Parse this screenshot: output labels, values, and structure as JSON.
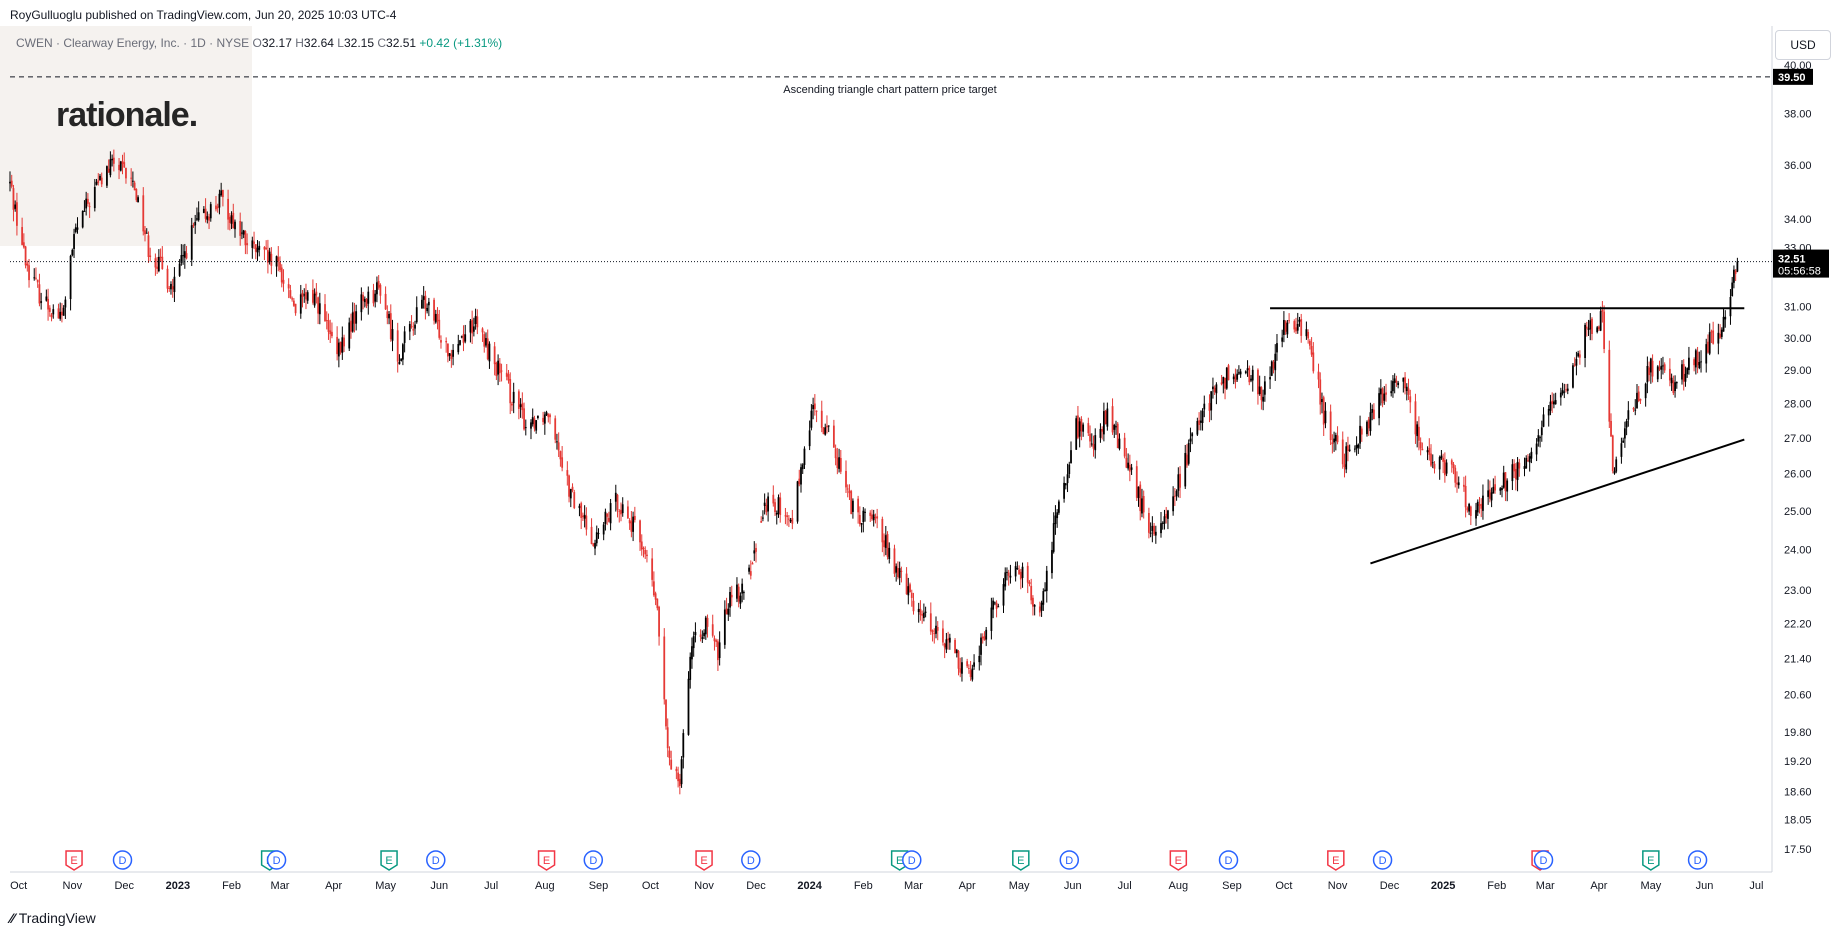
{
  "header": {
    "publisher_text": "RoyGulluoglu published on TradingView.com,",
    "publish_date": "Jun 20, 2025 10:03 UTC-4"
  },
  "symbol_bar": {
    "symbol_text": "CWEN · Clearway Energy, Inc. · 1D · NYSE",
    "open_label": "O",
    "open": "32.17",
    "high_label": "H",
    "high": "32.64",
    "low_label": "L",
    "low": "32.15",
    "close_label": "C",
    "close": "32.51",
    "change": "+0.42 (+1.31%)"
  },
  "watermark": {
    "logo_text": "rationale."
  },
  "currency": "USD",
  "footer": {
    "brand": "TradingView",
    "brand_icon": "tradingview-logo-icon"
  },
  "colors": {
    "up": "#000000",
    "down": "#e53935",
    "earnings_badge": "#f23645",
    "dividend_badge": "#2962ff",
    "earnings_green": "#089981"
  },
  "chart_data": {
    "type": "candlestick",
    "y_scale": "log",
    "ylim": [
      17.3,
      41.5
    ],
    "y_ticks": [
      40.0,
      38.0,
      36.0,
      34.0,
      33.0,
      31.0,
      30.0,
      29.0,
      28.0,
      27.0,
      26.0,
      25.0,
      24.0,
      23.0,
      22.2,
      21.4,
      20.6,
      19.8,
      19.2,
      18.6,
      18.05,
      17.5
    ],
    "x_ticks": [
      "Oct",
      "Nov",
      "Dec",
      "2023",
      "Feb",
      "Mar",
      "Apr",
      "May",
      "Jun",
      "Jul",
      "Aug",
      "Sep",
      "Oct",
      "Nov",
      "Dec",
      "2024",
      "Feb",
      "Mar",
      "Apr",
      "May",
      "Jun",
      "Jul",
      "Aug",
      "Sep",
      "Oct",
      "Nov",
      "Dec",
      "2025",
      "Feb",
      "Mar",
      "Apr",
      "May",
      "Jun",
      "Jul"
    ],
    "x_start": "2022-09-26",
    "x_end": "2025-07-10",
    "last_price": {
      "value": 32.51,
      "label": "32.51",
      "countdown": "05:56:58"
    },
    "target": {
      "value": 39.5,
      "label": "39.50",
      "annotation": "Ascending triangle chart pattern price target"
    },
    "resistance": {
      "value": 30.95,
      "from": "2024-09-23",
      "to": "2025-06-24"
    },
    "support_trendline": {
      "from_date": "2024-11-20",
      "from_value": 23.65,
      "to_date": "2025-06-24",
      "to_value": 26.95
    },
    "anchors": [
      [
        "2022-09-26",
        35.3
      ],
      [
        "2022-10-05",
        32.5
      ],
      [
        "2022-10-14",
        31.3
      ],
      [
        "2022-10-26",
        30.6
      ],
      [
        "2022-11-03",
        33.6
      ],
      [
        "2022-11-15",
        35.2
      ],
      [
        "2022-11-25",
        36.1
      ],
      [
        "2022-12-07",
        35.2
      ],
      [
        "2022-12-15",
        33.0
      ],
      [
        "2022-12-29",
        31.6
      ],
      [
        "2023-01-11",
        33.8
      ],
      [
        "2023-01-26",
        34.7
      ],
      [
        "2023-02-10",
        33.1
      ],
      [
        "2023-02-28",
        32.3
      ],
      [
        "2023-03-10",
        31.0
      ],
      [
        "2023-03-21",
        31.4
      ],
      [
        "2023-04-03",
        29.4
      ],
      [
        "2023-04-17",
        31.2
      ],
      [
        "2023-04-28",
        31.6
      ],
      [
        "2023-05-08",
        29.4
      ],
      [
        "2023-05-23",
        31.2
      ],
      [
        "2023-06-07",
        29.6
      ],
      [
        "2023-06-21",
        30.5
      ],
      [
        "2023-07-07",
        28.8
      ],
      [
        "2023-07-21",
        27.4
      ],
      [
        "2023-08-04",
        27.8
      ],
      [
        "2023-08-16",
        25.4
      ],
      [
        "2023-08-30",
        24.2
      ],
      [
        "2023-09-12",
        25.3
      ],
      [
        "2023-09-27",
        24.1
      ],
      [
        "2023-10-05",
        22.5
      ],
      [
        "2023-10-11",
        19.3
      ],
      [
        "2023-10-18",
        18.9
      ],
      [
        "2023-10-24",
        21.5
      ],
      [
        "2023-11-01",
        22.2
      ],
      [
        "2023-11-09",
        21.5
      ],
      [
        "2023-11-16",
        23.0
      ],
      [
        "2023-11-24",
        22.9
      ],
      [
        "2023-12-08",
        25.3
      ],
      [
        "2023-12-22",
        24.9
      ],
      [
        "2024-01-03",
        27.8
      ],
      [
        "2024-01-12",
        27.2
      ],
      [
        "2024-01-26",
        25.0
      ],
      [
        "2024-02-09",
        24.6
      ],
      [
        "2024-02-26",
        22.9
      ],
      [
        "2024-03-08",
        22.3
      ],
      [
        "2024-03-22",
        21.7
      ],
      [
        "2024-04-03",
        20.9
      ],
      [
        "2024-04-16",
        22.6
      ],
      [
        "2024-04-29",
        23.7
      ],
      [
        "2024-05-13",
        22.4
      ],
      [
        "2024-05-22",
        24.7
      ],
      [
        "2024-06-03",
        27.3
      ],
      [
        "2024-06-14",
        26.9
      ],
      [
        "2024-06-21",
        27.8
      ],
      [
        "2024-07-05",
        25.9
      ],
      [
        "2024-07-16",
        24.5
      ],
      [
        "2024-07-29",
        25.3
      ],
      [
        "2024-08-12",
        27.3
      ],
      [
        "2024-08-26",
        28.7
      ],
      [
        "2024-09-09",
        29.0
      ],
      [
        "2024-09-19",
        28.3
      ],
      [
        "2024-10-01",
        30.3
      ],
      [
        "2024-10-14",
        30.4
      ],
      [
        "2024-10-24",
        27.6
      ],
      [
        "2024-11-04",
        26.4
      ],
      [
        "2024-11-14",
        27.1
      ],
      [
        "2024-11-27",
        28.3
      ],
      [
        "2024-12-09",
        28.9
      ],
      [
        "2024-12-19",
        26.7
      ],
      [
        "2025-01-06",
        26.0
      ],
      [
        "2025-01-17",
        25.0
      ],
      [
        "2025-01-31",
        25.5
      ],
      [
        "2025-02-14",
        26.2
      ],
      [
        "2025-02-28",
        27.4
      ],
      [
        "2025-03-13",
        28.6
      ],
      [
        "2025-03-24",
        30.1
      ],
      [
        "2025-04-03",
        30.7
      ],
      [
        "2025-04-09",
        26.2
      ],
      [
        "2025-04-17",
        27.4
      ],
      [
        "2025-05-01",
        29.1
      ],
      [
        "2025-05-14",
        28.6
      ],
      [
        "2025-05-28",
        29.4
      ],
      [
        "2025-06-11",
        30.4
      ],
      [
        "2025-06-20",
        32.51
      ]
    ],
    "events": [
      {
        "type": "E",
        "date": "2022-11-02",
        "color": "#f23645",
        "icon": "earnings-icon"
      },
      {
        "type": "D",
        "date": "2022-11-30",
        "color": "#2962ff",
        "icon": "dividend-icon"
      },
      {
        "type": "E",
        "date": "2023-02-23",
        "color": "#089981",
        "icon": "earnings-icon"
      },
      {
        "type": "D",
        "date": "2023-02-27",
        "color": "#2962ff",
        "icon": "dividend-icon"
      },
      {
        "type": "E",
        "date": "2023-05-03",
        "color": "#089981",
        "icon": "earnings-icon"
      },
      {
        "type": "D",
        "date": "2023-05-30",
        "color": "#2962ff",
        "icon": "dividend-icon"
      },
      {
        "type": "E",
        "date": "2023-08-02",
        "color": "#f23645",
        "icon": "earnings-icon"
      },
      {
        "type": "D",
        "date": "2023-08-29",
        "color": "#2962ff",
        "icon": "dividend-icon"
      },
      {
        "type": "E",
        "date": "2023-11-01",
        "color": "#f23645",
        "icon": "earnings-icon"
      },
      {
        "type": "D",
        "date": "2023-11-28",
        "color": "#2962ff",
        "icon": "dividend-icon"
      },
      {
        "type": "E",
        "date": "2024-02-22",
        "color": "#089981",
        "icon": "earnings-icon"
      },
      {
        "type": "D",
        "date": "2024-02-29",
        "color": "#2962ff",
        "icon": "dividend-icon"
      },
      {
        "type": "E",
        "date": "2024-05-02",
        "color": "#089981",
        "icon": "earnings-icon"
      },
      {
        "type": "D",
        "date": "2024-05-30",
        "color": "#2962ff",
        "icon": "dividend-icon"
      },
      {
        "type": "E",
        "date": "2024-08-01",
        "color": "#f23645",
        "icon": "earnings-icon"
      },
      {
        "type": "D",
        "date": "2024-08-30",
        "color": "#2962ff",
        "icon": "dividend-icon"
      },
      {
        "type": "E",
        "date": "2024-10-31",
        "color": "#f23645",
        "icon": "earnings-icon"
      },
      {
        "type": "D",
        "date": "2024-11-27",
        "color": "#2962ff",
        "icon": "dividend-icon"
      },
      {
        "type": "E",
        "date": "2025-02-26",
        "color": "#f23645",
        "icon": "earnings-icon"
      },
      {
        "type": "D",
        "date": "2025-02-28",
        "color": "#2962ff",
        "icon": "dividend-icon"
      },
      {
        "type": "E",
        "date": "2025-05-01",
        "color": "#089981",
        "icon": "earnings-icon"
      },
      {
        "type": "D",
        "date": "2025-05-28",
        "color": "#2962ff",
        "icon": "dividend-icon"
      }
    ]
  }
}
